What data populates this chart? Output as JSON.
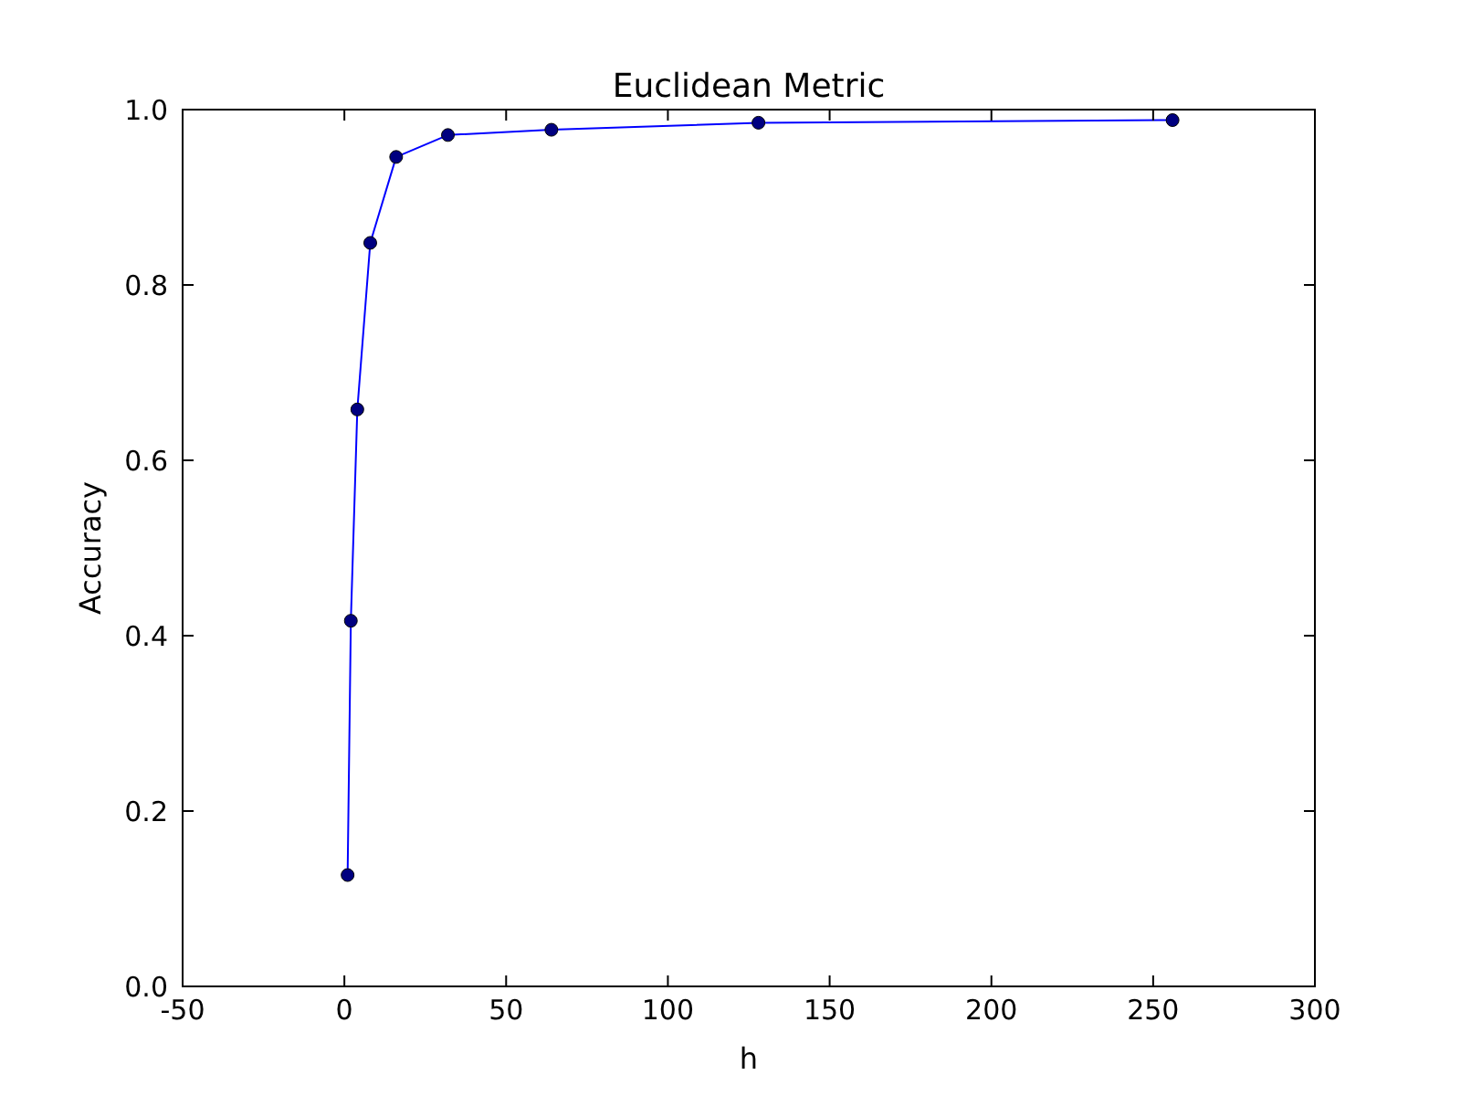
{
  "chart_data": {
    "type": "line",
    "title": "Euclidean Metric",
    "xlabel": "h",
    "ylabel": "Accuracy",
    "x": [
      1,
      2,
      4,
      8,
      16,
      32,
      64,
      128,
      256
    ],
    "series": [
      {
        "color": "#0000ff",
        "values": [
          0.127,
          0.417,
          0.658,
          0.848,
          0.946,
          0.971,
          0.977,
          0.985,
          0.988
        ]
      }
    ],
    "xlim": [
      -50,
      300
    ],
    "xticks": [
      -50,
      0,
      50,
      100,
      150,
      200,
      250,
      300
    ],
    "ylim": [
      0,
      1
    ],
    "yticks": [
      {
        "value": 0,
        "label": "0.0"
      },
      {
        "value": 0.2,
        "label": "0.2"
      },
      {
        "value": 0.4,
        "label": "0.4"
      },
      {
        "value": 0.6,
        "label": "0.6"
      },
      {
        "value": 0.8,
        "label": "0.8"
      },
      {
        "value": 1,
        "label": "1.0"
      }
    ],
    "marker": "circle",
    "line_style": "solid"
  }
}
